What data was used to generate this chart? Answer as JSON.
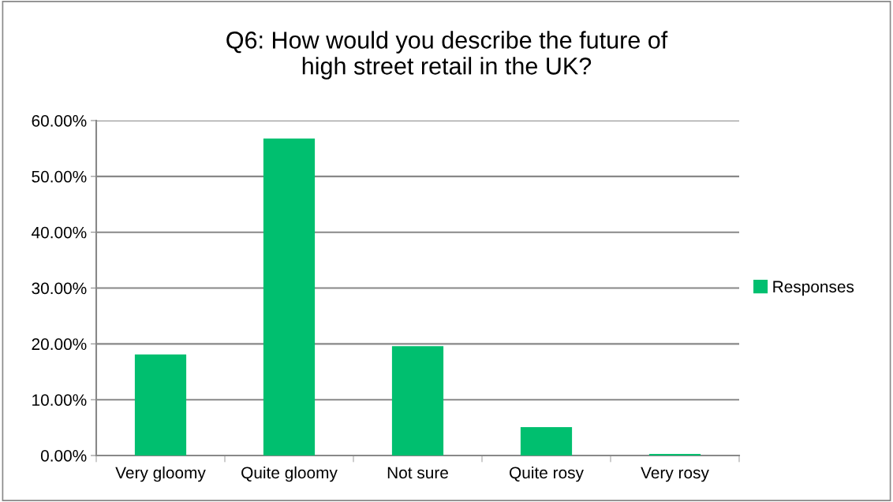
{
  "chart_data": {
    "type": "bar",
    "title": "Q6: How would you describe the future of\nhigh street retail in the UK?",
    "categories": [
      "Very gloomy",
      "Quite gloomy",
      "Not sure",
      "Quite rosy",
      "Very rosy"
    ],
    "series": [
      {
        "name": "Responses",
        "color": "#00bf6f",
        "values": [
          18.1,
          56.8,
          19.6,
          5.1,
          0.3
        ]
      }
    ],
    "ylim": [
      0,
      60
    ],
    "yticks": [
      {
        "value": 0,
        "label": "0.00%"
      },
      {
        "value": 10,
        "label": "10.00%"
      },
      {
        "value": 20,
        "label": "20.00%"
      },
      {
        "value": 30,
        "label": "30.00%"
      },
      {
        "value": 40,
        "label": "40.00%"
      },
      {
        "value": 50,
        "label": "50.00%"
      },
      {
        "value": 60,
        "label": "60.00%"
      }
    ],
    "grid": "y",
    "legend": "right"
  }
}
